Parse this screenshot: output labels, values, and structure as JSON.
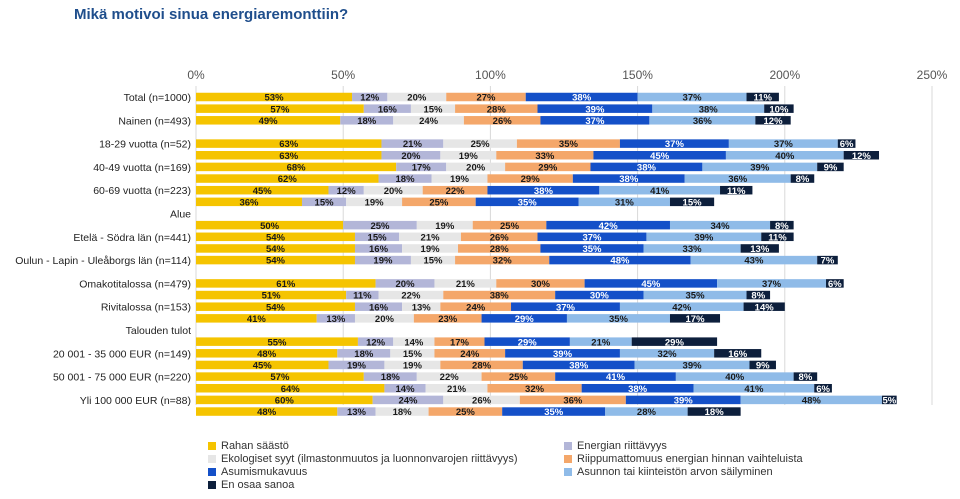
{
  "title": "Mikä motivoi sinua energiaremonttiin?",
  "chart_data": {
    "type": "bar",
    "orientation": "horizontal",
    "stacked": true,
    "title": "Mikä motivoi sinua energiaremonttiin?",
    "xlim": [
      0,
      250
    ],
    "x_ticks": [
      "0%",
      "50%",
      "100%",
      "150%",
      "200%",
      "250%"
    ],
    "grid": true,
    "legend_position": "bottom",
    "series": [
      {
        "name": "Rahan säästö",
        "color": "#f5c400"
      },
      {
        "name": "Energian riittävyys",
        "color": "#b3b6d8"
      },
      {
        "name": "Ekologiset syyt (ilmastonmuutos ja luonnonvarojen riittävyys)",
        "color": "#e6e6e6"
      },
      {
        "name": "Riippumattomuus energian hinnan vaihteluista",
        "color": "#f4a76a"
      },
      {
        "name": "Asumismukavuus",
        "color": "#1450c8"
      },
      {
        "name": "Asunnon tai kiinteistön arvon säilyminen",
        "color": "#8fbbe8"
      },
      {
        "name": "En osaa sanoa",
        "color": "#0d1f3c"
      }
    ],
    "rows": [
      {
        "label": "Total (n=1000)",
        "values": [
          53,
          12,
          20,
          27,
          38,
          37,
          11
        ]
      },
      {
        "label": "",
        "values": [
          57,
          16,
          15,
          28,
          39,
          38,
          10
        ]
      },
      {
        "label": "Nainen (n=493)",
        "values": [
          49,
          18,
          24,
          26,
          37,
          36,
          12
        ]
      },
      {
        "label": "",
        "values": null
      },
      {
        "label": "18-29 vuotta (n=52)",
        "values": [
          63,
          21,
          25,
          35,
          37,
          37,
          6
        ]
      },
      {
        "label": "",
        "values": [
          63,
          20,
          19,
          33,
          45,
          40,
          12
        ]
      },
      {
        "label": "40-49 vuotta (n=169)",
        "values": [
          68,
          17,
          20,
          29,
          38,
          39,
          9
        ]
      },
      {
        "label": "",
        "values": [
          62,
          18,
          19,
          29,
          38,
          36,
          8
        ]
      },
      {
        "label": "60-69 vuotta (n=223)",
        "values": [
          45,
          12,
          20,
          22,
          38,
          41,
          11
        ]
      },
      {
        "label": "",
        "values": [
          36,
          15,
          19,
          25,
          35,
          31,
          15
        ]
      },
      {
        "label": "Alue",
        "values": null
      },
      {
        "label": "",
        "values": [
          50,
          25,
          19,
          25,
          42,
          34,
          8
        ]
      },
      {
        "label": "Etelä - Södra län (n=441)",
        "values": [
          54,
          15,
          21,
          26,
          37,
          39,
          11
        ]
      },
      {
        "label": "",
        "values": [
          54,
          16,
          19,
          28,
          35,
          33,
          13
        ]
      },
      {
        "label": "Oulun - Lapin - Uleåborgs län (n=114)",
        "values": [
          54,
          19,
          15,
          32,
          48,
          43,
          7
        ]
      },
      {
        "label": "",
        "values": null
      },
      {
        "label": "Omakotitalossa (n=479)",
        "values": [
          61,
          20,
          21,
          30,
          45,
          37,
          6
        ]
      },
      {
        "label": "",
        "values": [
          51,
          11,
          22,
          38,
          30,
          35,
          8
        ]
      },
      {
        "label": "Rivitalossa (n=153)",
        "values": [
          54,
          16,
          13,
          24,
          37,
          42,
          14
        ]
      },
      {
        "label": "",
        "values": [
          41,
          13,
          20,
          23,
          29,
          35,
          17
        ]
      },
      {
        "label": "Talouden tulot",
        "values": null
      },
      {
        "label": "",
        "values": [
          55,
          12,
          14,
          17,
          29,
          21,
          29
        ]
      },
      {
        "label": "20 001 - 35 000 EUR (n=149)",
        "values": [
          48,
          18,
          15,
          24,
          39,
          32,
          16
        ]
      },
      {
        "label": "",
        "values": [
          45,
          19,
          19,
          28,
          38,
          39,
          9
        ]
      },
      {
        "label": "50 001 - 75 000 EUR (n=220)",
        "values": [
          57,
          18,
          22,
          25,
          41,
          40,
          8
        ]
      },
      {
        "label": "",
        "values": [
          64,
          14,
          21,
          32,
          38,
          41,
          6
        ]
      },
      {
        "label": "Yli 100 000 EUR (n=88)",
        "values": [
          60,
          24,
          26,
          36,
          39,
          48,
          5
        ]
      },
      {
        "label": "",
        "values": [
          48,
          13,
          18,
          25,
          35,
          28,
          18
        ]
      }
    ]
  },
  "legend": {
    "items": [
      {
        "label": "Rahan säästö",
        "color": "#f5c400"
      },
      {
        "label": "Energian riittävyys",
        "color": "#b3b6d8"
      },
      {
        "label": "Ekologiset syyt (ilmastonmuutos ja luonnonvarojen riittävyys)",
        "color": "#e6e6e6"
      },
      {
        "label": "Riippumattomuus energian hinnan vaihteluista",
        "color": "#f4a76a"
      },
      {
        "label": "Asumismukavuus",
        "color": "#1450c8"
      },
      {
        "label": "Asunnon tai kiinteistön arvon säilyminen",
        "color": "#8fbbe8"
      },
      {
        "label": "En osaa sanoa",
        "color": "#0d1f3c"
      }
    ]
  }
}
